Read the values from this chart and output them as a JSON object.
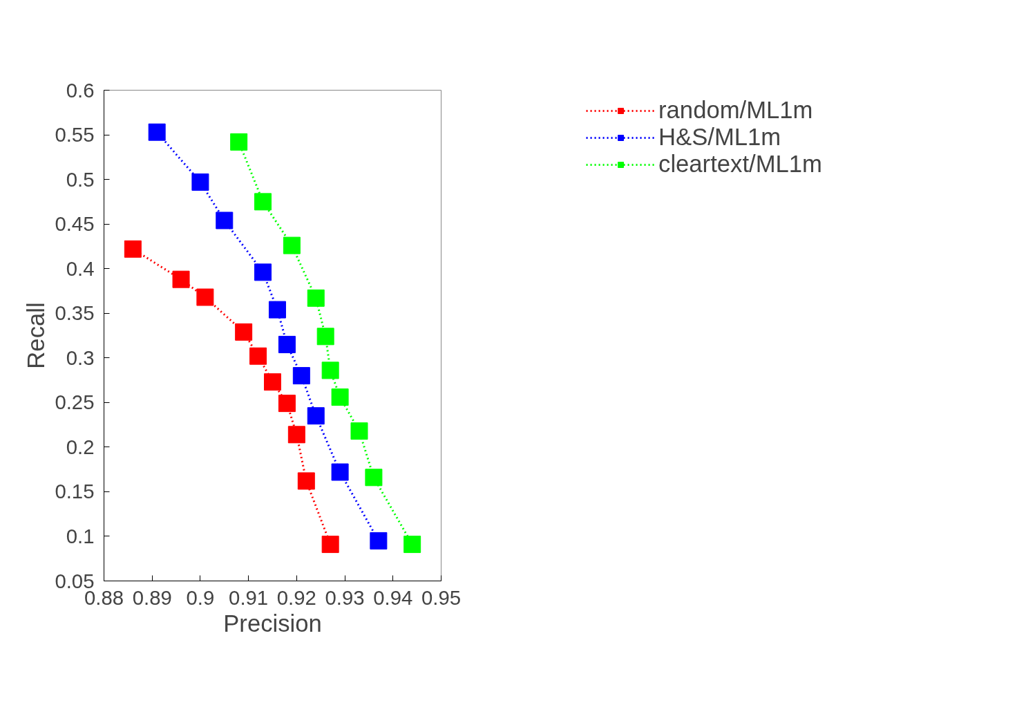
{
  "chart_data": {
    "type": "line",
    "xlabel": "Precision",
    "ylabel": "Recall",
    "xlim": [
      0.88,
      0.95
    ],
    "ylim": [
      0.05,
      0.6
    ],
    "xticks": [
      0.88,
      0.89,
      0.9,
      0.91,
      0.92,
      0.93,
      0.94,
      0.95
    ],
    "yticks": [
      0.05,
      0.1,
      0.15,
      0.2,
      0.25,
      0.3,
      0.35,
      0.4,
      0.45,
      0.5,
      0.55,
      0.6
    ],
    "grid": false,
    "legend": "top right",
    "marker": "square",
    "line_style": "dotted",
    "series": [
      {
        "name": "random/ML1m",
        "color": "#ff0000",
        "x": [
          0.886,
          0.896,
          0.901,
          0.909,
          0.912,
          0.915,
          0.918,
          0.92,
          0.922,
          0.927
        ],
        "values": [
          0.422,
          0.388,
          0.368,
          0.329,
          0.302,
          0.273,
          0.249,
          0.214,
          0.162,
          0.091
        ]
      },
      {
        "name": "H&S/ML1m",
        "color": "#0000ff",
        "x": [
          0.891,
          0.9,
          0.905,
          0.913,
          0.916,
          0.918,
          0.921,
          0.924,
          0.929,
          0.937
        ],
        "values": [
          0.553,
          0.497,
          0.454,
          0.396,
          0.354,
          0.315,
          0.28,
          0.235,
          0.172,
          0.095
        ]
      },
      {
        "name": "cleartext/ML1m",
        "color": "#00ff00",
        "x": [
          0.908,
          0.913,
          0.919,
          0.924,
          0.926,
          0.927,
          0.929,
          0.933,
          0.936,
          0.944
        ],
        "values": [
          0.542,
          0.475,
          0.426,
          0.367,
          0.324,
          0.286,
          0.256,
          0.218,
          0.166,
          0.091
        ]
      }
    ]
  }
}
